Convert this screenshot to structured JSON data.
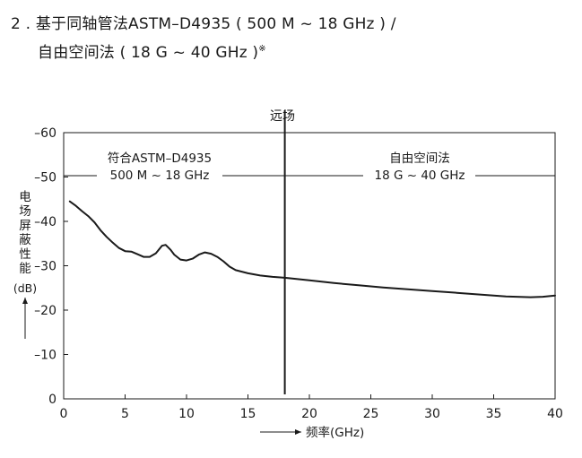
{
  "heading": {
    "line1": "2 . 基于同轴管法ASTM–D4935 ( 500 M ~ 18 GHz ) /",
    "line2": "自由空间法 ( 18 G ~ 40 GHz )",
    "note_mark": "※"
  },
  "chart_data": {
    "type": "line",
    "title": "远场",
    "xlabel": "频率(GHz)",
    "ylabel": "电场屏蔽性能",
    "yunit": "(dB)",
    "xlim": [
      0,
      40
    ],
    "ylim": [
      0,
      -60
    ],
    "x_ticks": [
      0,
      5,
      10,
      15,
      20,
      25,
      30,
      35,
      40
    ],
    "y_ticks": [
      0,
      -10,
      -20,
      -30,
      -40,
      -50,
      -60
    ],
    "x_tick_labels": [
      "0",
      "5",
      "10",
      "15",
      "20",
      "25",
      "30",
      "35",
      "40"
    ],
    "y_tick_labels": [
      "0",
      "–10",
      "–20",
      "–30",
      "–40",
      "–50",
      "–60"
    ],
    "grid": false,
    "marker_line_x": 18,
    "regions": [
      {
        "label1": "符合ASTM–D4935",
        "label2": "500 M ~ 18 GHz"
      },
      {
        "label1": "自由空间法",
        "label2": "18 G ~ 40 GHz"
      }
    ],
    "series": [
      {
        "values": [
          [
            0.5,
            -44.5
          ],
          [
            1,
            -43.5
          ],
          [
            1.5,
            -42.3
          ],
          [
            2,
            -41.2
          ],
          [
            2.5,
            -39.8
          ],
          [
            3,
            -38.0
          ],
          [
            3.5,
            -36.5
          ],
          [
            4,
            -35.2
          ],
          [
            4.5,
            -34.0
          ],
          [
            5,
            -33.3
          ],
          [
            5.5,
            -33.2
          ],
          [
            6,
            -32.6
          ],
          [
            6.5,
            -32.0
          ],
          [
            7,
            -32.0
          ],
          [
            7.5,
            -32.8
          ],
          [
            8,
            -34.5
          ],
          [
            8.3,
            -34.7
          ],
          [
            8.7,
            -33.6
          ],
          [
            9,
            -32.5
          ],
          [
            9.5,
            -31.4
          ],
          [
            10,
            -31.2
          ],
          [
            10.5,
            -31.6
          ],
          [
            11,
            -32.5
          ],
          [
            11.5,
            -33.0
          ],
          [
            12,
            -32.7
          ],
          [
            12.5,
            -32.0
          ],
          [
            13,
            -31.0
          ],
          [
            13.5,
            -29.8
          ],
          [
            14,
            -29.0
          ],
          [
            15,
            -28.3
          ],
          [
            16,
            -27.8
          ],
          [
            17,
            -27.5
          ],
          [
            18,
            -27.3
          ],
          [
            20,
            -26.7
          ],
          [
            22,
            -26.1
          ],
          [
            24,
            -25.6
          ],
          [
            26,
            -25.1
          ],
          [
            28,
            -24.7
          ],
          [
            30,
            -24.3
          ],
          [
            32,
            -23.9
          ],
          [
            34,
            -23.5
          ],
          [
            36,
            -23.1
          ],
          [
            38,
            -22.9
          ],
          [
            39,
            -23.0
          ],
          [
            40,
            -23.3
          ]
        ]
      }
    ]
  }
}
